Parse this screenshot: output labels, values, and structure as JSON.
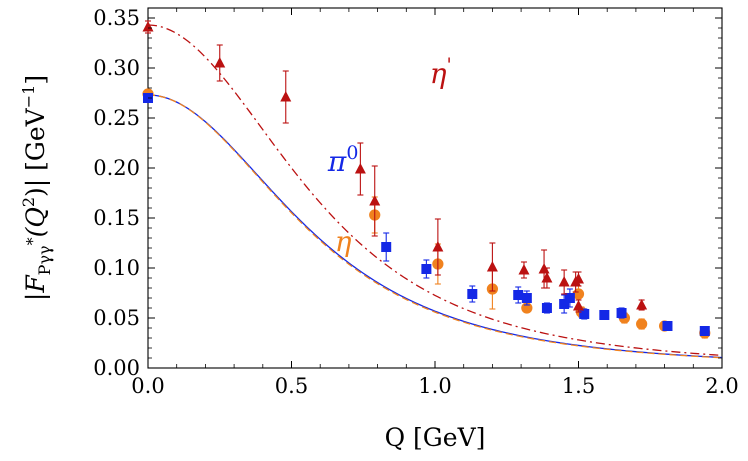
{
  "chart_data": {
    "type": "scatter",
    "title": "",
    "xlabel": "Q   [GeV]",
    "ylabel": "|F_{Pγγ*}(Q²)|  [GeV⁻¹]",
    "ylabel_parts": {
      "base": "|F",
      "sub": "Pγγ",
      "star": "*",
      "args": "(Q",
      "sup": "2",
      "close": ")|",
      "unit": "[GeV",
      "unit_sup": "−1",
      "unit_close": "]"
    },
    "xlim": [
      0.0,
      2.0
    ],
    "ylim": [
      0.0,
      0.36
    ],
    "xticks": [
      0.0,
      0.5,
      1.0,
      1.5,
      2.0
    ],
    "xtick_labels": [
      "0.0",
      "0.5",
      "1.0",
      "1.5",
      "2.0"
    ],
    "yticks": [
      0.0,
      0.05,
      0.1,
      0.15,
      0.2,
      0.25,
      0.3,
      0.35
    ],
    "ytick_labels": [
      "0.00",
      "0.05",
      "0.10",
      "0.15",
      "0.20",
      "0.25",
      "0.30",
      "0.35"
    ],
    "grid": false,
    "series": [
      {
        "name": "η'",
        "label_base": "η",
        "label_sup": "'",
        "color": "#bb1111",
        "marker": "triangle",
        "curve_style": "dashdot",
        "curve": {
          "a": 0.343,
          "lambda2": 0.67,
          "n": 1.7
        },
        "points": [
          {
            "x": 0.0,
            "y": 0.341,
            "err": 0.006
          },
          {
            "x": 0.25,
            "y": 0.305,
            "err": 0.018
          },
          {
            "x": 0.48,
            "y": 0.271,
            "err": 0.026
          },
          {
            "x": 0.74,
            "y": 0.199,
            "err": 0.026
          },
          {
            "x": 0.79,
            "y": 0.167,
            "err": 0.035
          },
          {
            "x": 1.01,
            "y": 0.121,
            "err": 0.028
          },
          {
            "x": 1.2,
            "y": 0.101,
            "err": 0.024
          },
          {
            "x": 1.31,
            "y": 0.098,
            "err": 0.008
          },
          {
            "x": 1.38,
            "y": 0.099,
            "err": 0.019
          },
          {
            "x": 1.39,
            "y": 0.09,
            "err": 0.01
          },
          {
            "x": 1.45,
            "y": 0.086,
            "err": 0.012
          },
          {
            "x": 1.49,
            "y": 0.086,
            "err": 0.01
          },
          {
            "x": 1.5,
            "y": 0.089,
            "err": 0.007
          },
          {
            "x": 1.5,
            "y": 0.062,
            "err": 0.006
          },
          {
            "x": 1.72,
            "y": 0.063,
            "err": 0.005
          }
        ]
      },
      {
        "name": "π⁰",
        "label_base": "π",
        "label_sup": "0",
        "color": "#1428e6",
        "marker": "square",
        "curve_style": "solid",
        "curve": {
          "a": 0.273,
          "lambda2": 0.6,
          "n": 1.6
        },
        "points": [
          {
            "x": 0.0,
            "y": 0.27,
            "err": 0.004
          },
          {
            "x": 0.83,
            "y": 0.121,
            "err": 0.014
          },
          {
            "x": 0.97,
            "y": 0.099,
            "err": 0.009
          },
          {
            "x": 1.13,
            "y": 0.074,
            "err": 0.008
          },
          {
            "x": 1.29,
            "y": 0.073,
            "err": 0.008
          },
          {
            "x": 1.32,
            "y": 0.07,
            "err": 0.007
          },
          {
            "x": 1.39,
            "y": 0.06,
            "err": 0.005
          },
          {
            "x": 1.45,
            "y": 0.064,
            "err": 0.009
          },
          {
            "x": 1.47,
            "y": 0.07,
            "err": 0.009
          },
          {
            "x": 1.52,
            "y": 0.054,
            "err": 0.005
          },
          {
            "x": 1.59,
            "y": 0.053,
            "err": 0.004
          },
          {
            "x": 1.65,
            "y": 0.055,
            "err": 0.005
          },
          {
            "x": 1.81,
            "y": 0.042,
            "err": 0.004
          },
          {
            "x": 1.94,
            "y": 0.037,
            "err": 0.004
          }
        ]
      },
      {
        "name": "η",
        "label_base": "η",
        "label_sup": "",
        "color": "#f0821e",
        "marker": "circle",
        "curve_style": "dashed",
        "curve": {
          "a": 0.273,
          "lambda2": 0.59,
          "n": 1.6
        },
        "points": [
          {
            "x": 0.0,
            "y": 0.274,
            "err": 0.003
          },
          {
            "x": 0.79,
            "y": 0.153,
            "err": 0.018
          },
          {
            "x": 1.01,
            "y": 0.104,
            "err": 0.02
          },
          {
            "x": 1.2,
            "y": 0.079,
            "err": 0.02
          },
          {
            "x": 1.32,
            "y": 0.06,
            "err": 0.004
          },
          {
            "x": 1.5,
            "y": 0.074,
            "err": 0.015
          },
          {
            "x": 1.51,
            "y": 0.056,
            "err": 0.005
          },
          {
            "x": 1.66,
            "y": 0.05,
            "err": 0.005
          },
          {
            "x": 1.72,
            "y": 0.044,
            "err": 0.005
          },
          {
            "x": 1.8,
            "y": 0.042,
            "err": 0.004
          },
          {
            "x": 1.94,
            "y": 0.035,
            "err": 0.005
          }
        ]
      }
    ],
    "curve_labels": [
      {
        "series": 0,
        "x": 1.02,
        "y": 0.285
      },
      {
        "series": 1,
        "x": 0.68,
        "y": 0.197
      },
      {
        "series": 2,
        "x": 0.68,
        "y": 0.117
      }
    ]
  }
}
